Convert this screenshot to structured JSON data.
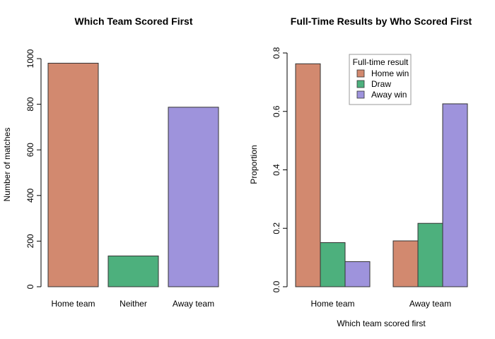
{
  "chart_data": [
    {
      "type": "bar",
      "title": "Which Team Scored First",
      "xlabel": "",
      "ylabel": "Number of matches",
      "categories": [
        "Home team",
        "Neither",
        "Away team"
      ],
      "values": [
        980,
        135,
        787
      ],
      "colors": [
        "#D2896F",
        "#4DB07D",
        "#9E93DC"
      ],
      "ylim": [
        0,
        1000
      ],
      "yticks": [
        0,
        200,
        400,
        600,
        800,
        1000
      ],
      "ytick_labels": [
        "0",
        "200",
        "400",
        "600",
        "800",
        "1000"
      ],
      "grid": false
    },
    {
      "type": "bar",
      "title": "Full-Time Results by Who Scored First",
      "xlabel": "Which team scored first",
      "ylabel": "Proportion",
      "categories": [
        "Home team",
        "Away team"
      ],
      "series": [
        {
          "name": "Home win",
          "values": [
            0.763,
            0.157
          ],
          "color": "#D2896F"
        },
        {
          "name": "Draw",
          "values": [
            0.151,
            0.217
          ],
          "color": "#4DB07D"
        },
        {
          "name": "Away win",
          "values": [
            0.086,
            0.626
          ],
          "color": "#9E93DC"
        }
      ],
      "ylim": [
        0,
        0.8
      ],
      "yticks": [
        0,
        0.2,
        0.4,
        0.6,
        0.8
      ],
      "ytick_labels": [
        "0.0",
        "0.2",
        "0.4",
        "0.6",
        "0.8"
      ],
      "legend": {
        "title": "Full-time result",
        "placement": "top-center"
      },
      "grid": false
    }
  ]
}
